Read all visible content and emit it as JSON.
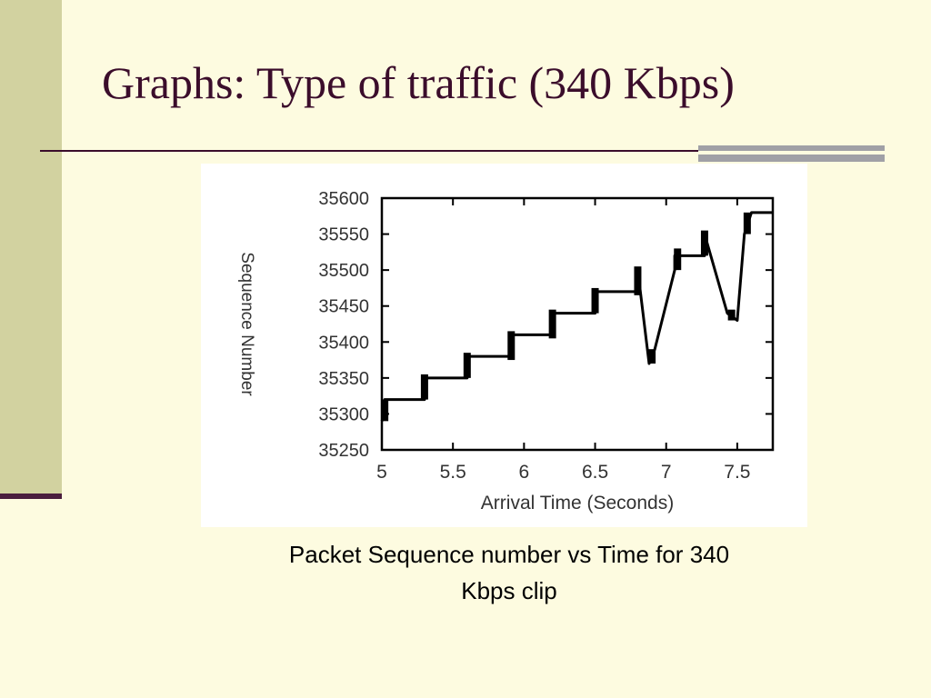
{
  "slide": {
    "title": "Graphs: Type of traffic (340 Kbps)",
    "caption_line1": "Packet Sequence number vs Time for 340",
    "caption_line2": "Kbps clip",
    "colors": {
      "background": "#fdfbe0",
      "side_band": "#d2d2a0",
      "title_text": "#3b0d2b",
      "rule": "#3b0d2b",
      "rule_accent": "#a0a0a6"
    }
  },
  "chart_data": {
    "type": "line",
    "xlabel": "Arrival Time (Seconds)",
    "ylabel": "Sequence Number",
    "xlim": [
      5,
      7.75
    ],
    "ylim": [
      35250,
      35600
    ],
    "xticks": [
      5,
      5.5,
      6,
      6.5,
      7,
      7.5
    ],
    "xtick_labels": [
      "5",
      "5.5",
      "6",
      "6.5",
      "7",
      "7.5"
    ],
    "yticks": [
      35250,
      35300,
      35350,
      35400,
      35450,
      35500,
      35550,
      35600
    ],
    "ytick_labels": [
      "35250",
      "35300",
      "35350",
      "35400",
      "35450",
      "35500",
      "35550",
      "35600"
    ],
    "grid": false,
    "series": [
      {
        "x": [
          5.0,
          5.02,
          5.02,
          5.3,
          5.3,
          5.6,
          5.6,
          5.91,
          5.91,
          6.2,
          6.2,
          6.5,
          6.5,
          6.8,
          6.8,
          6.88,
          6.92,
          7.06,
          7.06,
          7.27,
          7.27,
          7.43,
          7.5,
          7.55,
          7.6,
          7.75
        ],
        "y": [
          35290,
          35300,
          35320,
          35320,
          35350,
          35350,
          35380,
          35380,
          35410,
          35410,
          35440,
          35440,
          35470,
          35470,
          35500,
          35370,
          35390,
          35500,
          35520,
          35520,
          35550,
          35440,
          35430,
          35550,
          35580,
          35580
        ]
      }
    ],
    "bursts": [
      {
        "x": 5.02,
        "y_from": 35290,
        "y_to": 35320
      },
      {
        "x": 5.3,
        "y_from": 35320,
        "y_to": 35355
      },
      {
        "x": 5.6,
        "y_from": 35350,
        "y_to": 35385
      },
      {
        "x": 5.91,
        "y_from": 35375,
        "y_to": 35415
      },
      {
        "x": 6.2,
        "y_from": 35405,
        "y_to": 35445
      },
      {
        "x": 6.5,
        "y_from": 35440,
        "y_to": 35475
      },
      {
        "x": 6.8,
        "y_from": 35465,
        "y_to": 35505
      },
      {
        "x": 6.9,
        "y_from": 35370,
        "y_to": 35390
      },
      {
        "x": 7.08,
        "y_from": 35500,
        "y_to": 35530
      },
      {
        "x": 7.27,
        "y_from": 35520,
        "y_to": 35555
      },
      {
        "x": 7.46,
        "y_from": 35430,
        "y_to": 35445
      },
      {
        "x": 7.57,
        "y_from": 35550,
        "y_to": 35580
      }
    ]
  }
}
